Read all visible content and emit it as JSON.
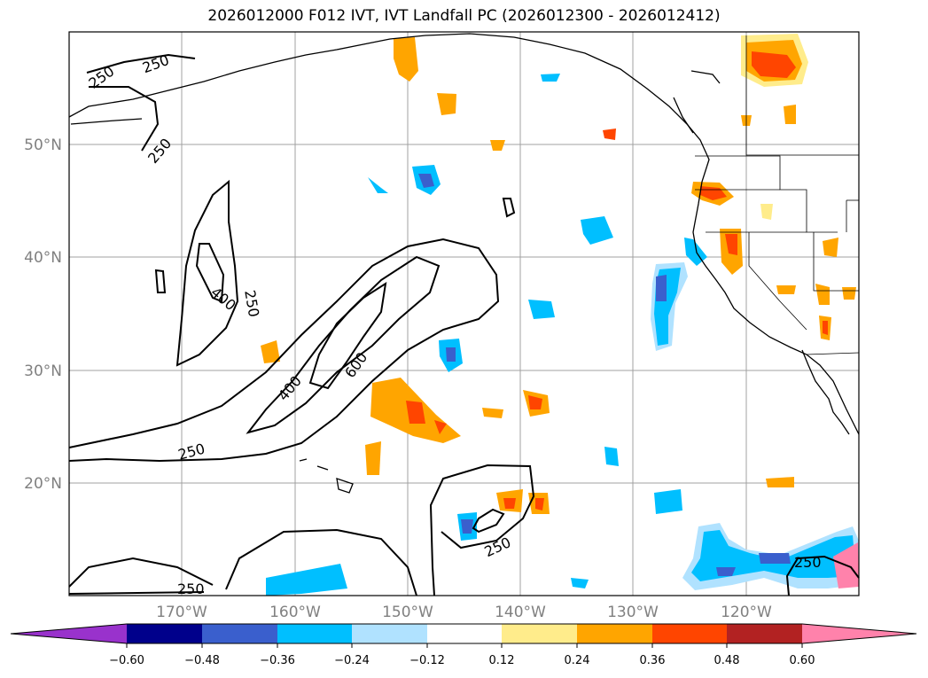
{
  "title": "2026012000 F012 IVT, IVT Landfall PC (2026012300 - 2026012412)",
  "map": {
    "lat_labels": [
      "50°N",
      "40°N",
      "30°N",
      "20°N"
    ],
    "lon_labels": [
      "170°W",
      "160°W",
      "150°W",
      "140°W",
      "130°W",
      "120°W"
    ],
    "gridline_color": "#a0a0a0",
    "coast_color": "#000000"
  },
  "contours": {
    "labels": [
      "250",
      "250",
      "250",
      "400",
      "250",
      "600",
      "400",
      "250",
      "250",
      "250",
      "250"
    ]
  },
  "colorbar": {
    "ticks": [
      "−0.60",
      "−0.48",
      "−0.36",
      "−0.24",
      "−0.12",
      "0.12",
      "0.24",
      "0.36",
      "0.48",
      "0.60"
    ],
    "colors": [
      "#9932cc",
      "#00008b",
      "#3a5fcd",
      "#00bfff",
      "#b0e2ff",
      "#ffffff",
      "#ffec8b",
      "#ffa500",
      "#ff4500",
      "#b22222",
      "#ff82ab"
    ]
  }
}
